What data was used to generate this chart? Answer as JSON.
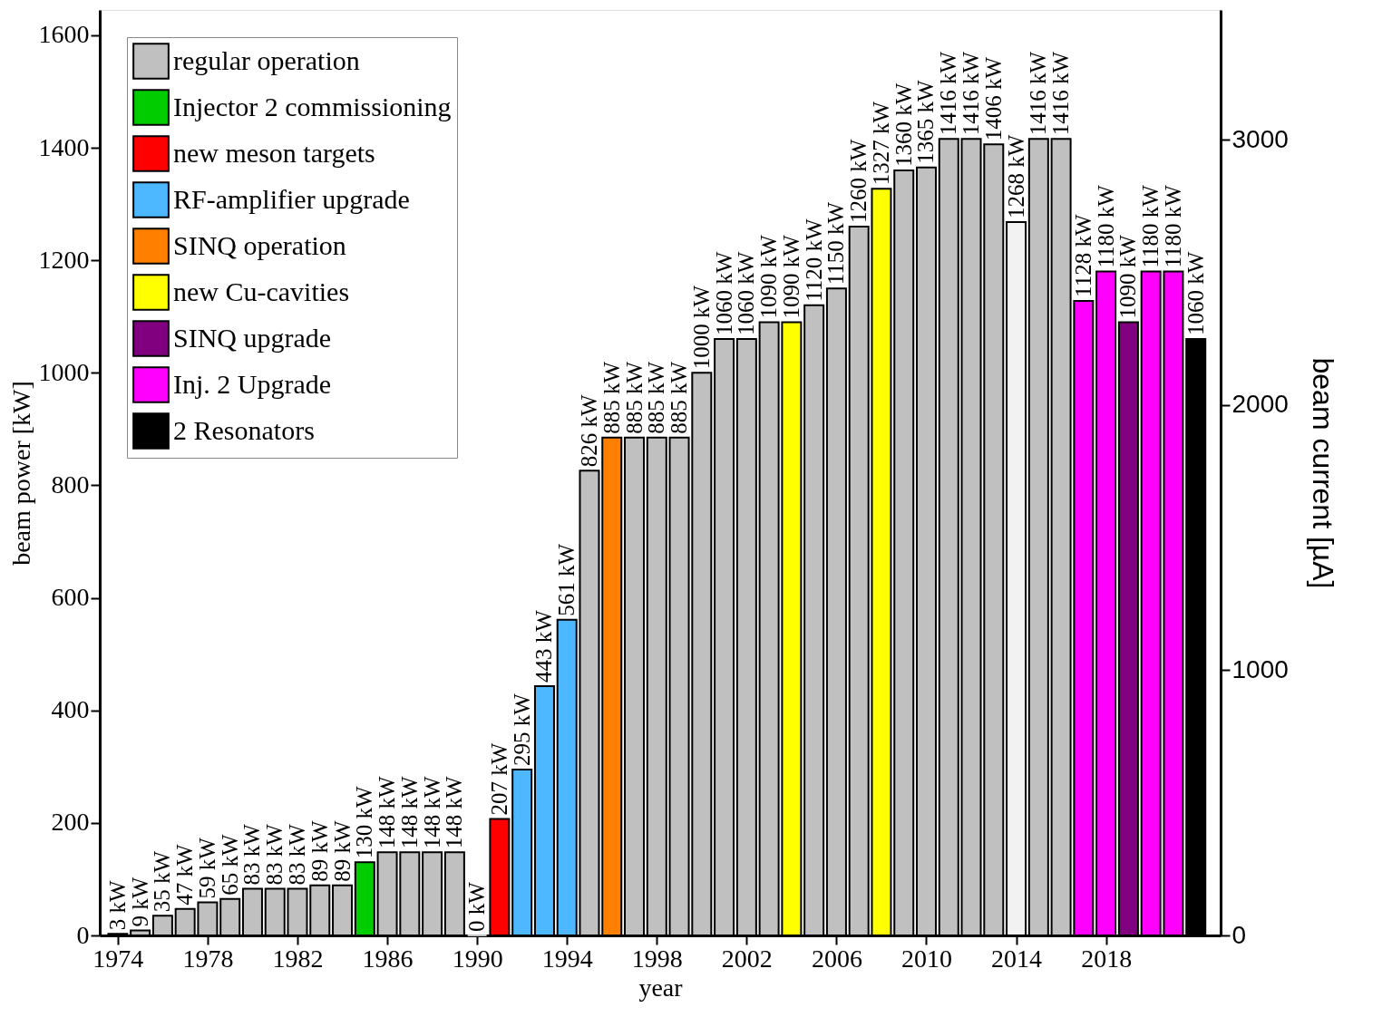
{
  "chart_data": {
    "type": "bar",
    "xlabel": "year",
    "ylabel": "beam power [kW]",
    "y2label": "beam current [µA]",
    "x": [
      1974,
      1975,
      1976,
      1977,
      1978,
      1979,
      1980,
      1981,
      1982,
      1983,
      1984,
      1985,
      1986,
      1987,
      1988,
      1989,
      1990,
      1991,
      1992,
      1993,
      1994,
      1995,
      1996,
      1997,
      1998,
      1999,
      2000,
      2001,
      2002,
      2003,
      2004,
      2005,
      2006,
      2007,
      2008,
      2009,
      2010,
      2011,
      2012,
      2013,
      2014,
      2015,
      2016,
      2017,
      2018,
      2019,
      2020,
      2021,
      2022
    ],
    "xlim": [
      1973.4,
      2022.9
    ],
    "xticks": [
      1974,
      1978,
      1982,
      1986,
      1990,
      1994,
      1998,
      2002,
      2006,
      2010,
      2014,
      2018
    ],
    "ylim": [
      0,
      1645
    ],
    "yticks": [
      0,
      200,
      400,
      600,
      800,
      1000,
      1200,
      1400,
      1600
    ],
    "y2lim": [
      0,
      3490
    ],
    "y2ticks": [
      0,
      1000,
      2000,
      3000
    ],
    "legend": "top left",
    "grid": false,
    "series": [
      {
        "name": "regular operation",
        "color": "#c0c0c0",
        "values": [
          3,
          9,
          35,
          47,
          59,
          65,
          83,
          83,
          83,
          89,
          89,
          null,
          148,
          148,
          148,
          148,
          0,
          null,
          null,
          null,
          null,
          826,
          null,
          885,
          885,
          885,
          1000,
          1060,
          1060,
          1090,
          null,
          1120,
          1150,
          1260,
          null,
          1360,
          1365,
          1416,
          1416,
          1406,
          null,
          1416,
          1416,
          null,
          null,
          null,
          null,
          null,
          null
        ]
      },
      {
        "name": "Injector 2 commissioning",
        "color": "#00cc00",
        "values": [
          null,
          null,
          null,
          null,
          null,
          null,
          null,
          null,
          null,
          null,
          null,
          130,
          null,
          null,
          null,
          null,
          null,
          null,
          null,
          null,
          null,
          null,
          null,
          null,
          null,
          null,
          null,
          null,
          null,
          null,
          null,
          null,
          null,
          null,
          null,
          null,
          null,
          null,
          null,
          null,
          null,
          null,
          null,
          null,
          null,
          null,
          null,
          null,
          null
        ]
      },
      {
        "name": "new meson targets",
        "color": "#ff0000",
        "values": [
          null,
          null,
          null,
          null,
          null,
          null,
          null,
          null,
          null,
          null,
          null,
          null,
          null,
          null,
          null,
          null,
          null,
          207,
          null,
          null,
          null,
          null,
          null,
          null,
          null,
          null,
          null,
          null,
          null,
          null,
          null,
          null,
          null,
          null,
          null,
          null,
          null,
          null,
          null,
          null,
          null,
          null,
          null,
          null,
          null,
          null,
          null,
          null,
          null
        ]
      },
      {
        "name": "RF-amplifier upgrade",
        "color": "#4db8ff",
        "values": [
          null,
          null,
          null,
          null,
          null,
          null,
          null,
          null,
          null,
          null,
          null,
          null,
          null,
          null,
          null,
          null,
          null,
          null,
          295,
          443,
          561,
          null,
          null,
          null,
          null,
          null,
          null,
          null,
          null,
          null,
          null,
          null,
          null,
          null,
          null,
          null,
          null,
          null,
          null,
          null,
          null,
          null,
          null,
          null,
          null,
          null,
          null,
          null,
          null
        ]
      },
      {
        "name": "SINQ operation",
        "color": "#ff8000",
        "values": [
          null,
          null,
          null,
          null,
          null,
          null,
          null,
          null,
          null,
          null,
          null,
          null,
          null,
          null,
          null,
          null,
          null,
          null,
          null,
          null,
          null,
          null,
          885,
          null,
          null,
          null,
          null,
          null,
          null,
          null,
          null,
          null,
          null,
          null,
          null,
          null,
          null,
          null,
          null,
          null,
          null,
          null,
          null,
          null,
          null,
          null,
          null,
          null,
          null
        ]
      },
      {
        "name": "new Cu-cavities",
        "color": "#ffff00",
        "values": [
          null,
          null,
          null,
          null,
          null,
          null,
          null,
          null,
          null,
          null,
          null,
          null,
          null,
          null,
          null,
          null,
          null,
          null,
          null,
          null,
          null,
          null,
          null,
          null,
          null,
          null,
          null,
          null,
          null,
          null,
          1090,
          null,
          null,
          null,
          1327,
          null,
          null,
          null,
          null,
          null,
          null,
          null,
          null,
          null,
          null,
          null,
          null,
          null,
          null
        ]
      },
      {
        "name": "SINQ upgrade",
        "color": "#800080",
        "values": [
          null,
          null,
          null,
          null,
          null,
          null,
          null,
          null,
          null,
          null,
          null,
          null,
          null,
          null,
          null,
          null,
          null,
          null,
          null,
          null,
          null,
          null,
          null,
          null,
          null,
          null,
          null,
          null,
          null,
          null,
          null,
          null,
          null,
          null,
          null,
          null,
          null,
          null,
          null,
          null,
          null,
          null,
          null,
          null,
          null,
          1090,
          null,
          null,
          null
        ]
      },
      {
        "name": "Inj. 2 Upgrade",
        "color": "#ff00ff",
        "values": [
          null,
          null,
          null,
          null,
          null,
          null,
          null,
          null,
          null,
          null,
          null,
          null,
          null,
          null,
          null,
          null,
          null,
          null,
          null,
          null,
          null,
          null,
          null,
          null,
          null,
          null,
          null,
          null,
          null,
          null,
          null,
          null,
          null,
          null,
          null,
          null,
          null,
          null,
          null,
          null,
          null,
          null,
          null,
          1128,
          1180,
          null,
          1180,
          1180,
          null
        ]
      },
      {
        "name": "2 Resonators",
        "color": "#000000",
        "values": [
          null,
          null,
          null,
          null,
          null,
          null,
          null,
          null,
          null,
          null,
          null,
          null,
          null,
          null,
          null,
          null,
          null,
          null,
          null,
          null,
          null,
          null,
          null,
          null,
          null,
          null,
          null,
          null,
          null,
          null,
          null,
          null,
          null,
          null,
          null,
          null,
          null,
          null,
          null,
          null,
          null,
          null,
          null,
          null,
          null,
          null,
          null,
          null,
          1060
        ]
      },
      {
        "color": "#f2f2f2",
        "values": [
          null,
          null,
          null,
          null,
          null,
          null,
          null,
          null,
          null,
          null,
          null,
          null,
          null,
          null,
          null,
          null,
          null,
          null,
          null,
          null,
          null,
          null,
          null,
          null,
          null,
          null,
          null,
          null,
          null,
          null,
          null,
          null,
          null,
          null,
          null,
          null,
          null,
          null,
          null,
          null,
          1268,
          null,
          null,
          null,
          null,
          null,
          null,
          null,
          null
        ]
      }
    ],
    "value_labels": [
      "3 kW",
      "9 kW",
      "35 kW",
      "47 kW",
      "59 kW",
      "65 kW",
      "83 kW",
      "83 kW",
      "83 kW",
      "89 kW",
      "89 kW",
      "130 kW",
      "148 kW",
      "148 kW",
      "148 kW",
      "148 kW",
      "0 kW",
      "207 kW",
      "295 kW",
      "443 kW",
      "561 kW",
      "826 kW",
      "885 kW",
      "885 kW",
      "885 kW",
      "885 kW",
      "1000 kW",
      "1060 kW",
      "1060 kW",
      "1090 kW",
      "1090 kW",
      "1120 kW",
      "1150 kW",
      "1260 kW",
      "1327 kW",
      "1360 kW",
      "1365 kW",
      "1416 kW",
      "1416 kW",
      "1406 kW",
      "1268 kW",
      "1416 kW",
      "1416 kW",
      "1128 kW",
      "1180 kW",
      "1090 kW",
      "1180 kW",
      "1180 kW",
      "1060 kW"
    ]
  }
}
